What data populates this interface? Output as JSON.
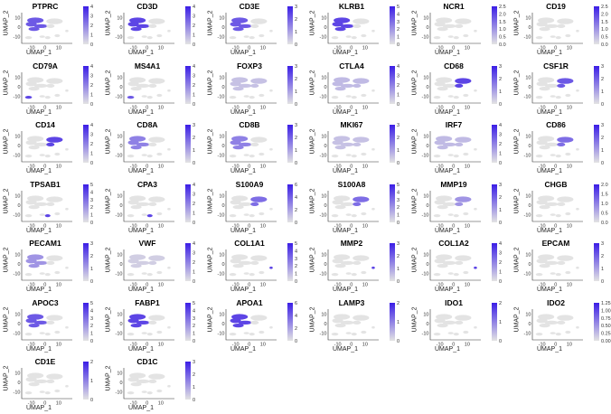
{
  "chart_data": {
    "type": "scatter",
    "description_axes": {
      "xlabel": "UMAP_1",
      "ylabel": "UMAP_2"
    },
    "x_ticks": [
      "-10",
      "0",
      "10"
    ],
    "y_ticks": [
      "10",
      "0",
      "-10"
    ],
    "xlim": [
      -17,
      20
    ],
    "ylim": [
      -17,
      15
    ],
    "color_low": "#e3e3e3",
    "color_high": "#3b1ee6",
    "panels": [
      {
        "gene": "PTPRC",
        "max": 4,
        "ticks": [
          "0",
          "1",
          "2",
          "3",
          "4"
        ],
        "region": "left",
        "level": 0.7
      },
      {
        "gene": "CD3D",
        "max": 4,
        "ticks": [
          "0",
          "1",
          "2",
          "3",
          "4"
        ],
        "region": "left",
        "level": 0.8
      },
      {
        "gene": "CD3E",
        "max": 3,
        "ticks": [
          "0",
          "1",
          "2",
          "3"
        ],
        "region": "left",
        "level": 0.7
      },
      {
        "gene": "KLRB1",
        "max": 5,
        "ticks": [
          "0",
          "1",
          "2",
          "3",
          "4",
          "5"
        ],
        "region": "left",
        "level": 0.8
      },
      {
        "gene": "NCR1",
        "max": 2.5,
        "ticks": [
          "0.0",
          "0.5",
          "1.0",
          "1.5",
          "2.0",
          "2.5"
        ],
        "region": "none",
        "level": 0.1
      },
      {
        "gene": "CD19",
        "max": 2.5,
        "ticks": [
          "0.0",
          "0.5",
          "1.0",
          "1.5",
          "2.0",
          "2.5"
        ],
        "region": "none",
        "level": 0.1
      },
      {
        "gene": "CD79A",
        "max": 4,
        "ticks": [
          "0",
          "1",
          "2",
          "3",
          "4"
        ],
        "region": "spot",
        "level": 0.8
      },
      {
        "gene": "MS4A1",
        "max": 4,
        "ticks": [
          "0",
          "1",
          "2",
          "3",
          "4"
        ],
        "region": "spot",
        "level": 0.7
      },
      {
        "gene": "FOXP3",
        "max": 3,
        "ticks": [
          "0",
          "1",
          "2",
          "3"
        ],
        "region": "sparse",
        "level": 0.5
      },
      {
        "gene": "CTLA4",
        "max": 4,
        "ticks": [
          "0",
          "1",
          "2",
          "3",
          "4"
        ],
        "region": "sparse",
        "level": 0.6
      },
      {
        "gene": "CD68",
        "max": 3,
        "ticks": [
          "0",
          "1",
          "2",
          "3"
        ],
        "region": "myeloid",
        "level": 0.8
      },
      {
        "gene": "CSF1R",
        "max": 3,
        "ticks": [
          "0",
          "1",
          "2",
          "3"
        ],
        "region": "myeloid",
        "level": 0.7
      },
      {
        "gene": "CD14",
        "max": 4,
        "ticks": [
          "0",
          "1",
          "2",
          "3",
          "4"
        ],
        "region": "myeloid",
        "level": 0.8
      },
      {
        "gene": "CD8A",
        "max": 3,
        "ticks": [
          "0",
          "1",
          "2",
          "3"
        ],
        "region": "left",
        "level": 0.5
      },
      {
        "gene": "CD8B",
        "max": 3,
        "ticks": [
          "0",
          "1",
          "2",
          "3"
        ],
        "region": "left",
        "level": 0.5
      },
      {
        "gene": "MKI67",
        "max": 3,
        "ticks": [
          "0",
          "1",
          "2",
          "3"
        ],
        "region": "sparse",
        "level": 0.5
      },
      {
        "gene": "IRF7",
        "max": 4,
        "ticks": [
          "0",
          "1",
          "2",
          "3",
          "4"
        ],
        "region": "sparse",
        "level": 0.6
      },
      {
        "gene": "CD86",
        "max": 3,
        "ticks": [
          "0",
          "1",
          "2",
          "3"
        ],
        "region": "myeloid",
        "level": 0.6
      },
      {
        "gene": "TPSAB1",
        "max": 5,
        "ticks": [
          "0",
          "1",
          "2",
          "3",
          "4",
          "5"
        ],
        "region": "spot2",
        "level": 0.8
      },
      {
        "gene": "CPA3",
        "max": 4,
        "ticks": [
          "0",
          "1",
          "2",
          "3",
          "4"
        ],
        "region": "spot2",
        "level": 0.8
      },
      {
        "gene": "S100A9",
        "max": 6,
        "ticks": [
          "0",
          "2",
          "4",
          "6"
        ],
        "region": "myeloid",
        "level": 0.6
      },
      {
        "gene": "S100A8",
        "max": 5,
        "ticks": [
          "0",
          "1",
          "2",
          "3",
          "4",
          "5"
        ],
        "region": "myeloid",
        "level": 0.6
      },
      {
        "gene": "MMP19",
        "max": 3,
        "ticks": [
          "0",
          "1",
          "2",
          "3"
        ],
        "region": "myeloid",
        "level": 0.4
      },
      {
        "gene": "CHGB",
        "max": 2.0,
        "ticks": [
          "0.0",
          "0.5",
          "1.0",
          "1.5",
          "2.0"
        ],
        "region": "none",
        "level": 0.1
      },
      {
        "gene": "PECAM1",
        "max": 3,
        "ticks": [
          "0",
          "1",
          "2",
          "3"
        ],
        "region": "left",
        "level": 0.4
      },
      {
        "gene": "VWF",
        "max": 4,
        "ticks": [
          "0",
          "1",
          "2",
          "3",
          "4"
        ],
        "region": "sparse",
        "level": 0.3
      },
      {
        "gene": "COL1A1",
        "max": 5,
        "ticks": [
          "0",
          "1",
          "2",
          "3",
          "4",
          "5"
        ],
        "region": "right",
        "level": 0.8
      },
      {
        "gene": "MMP2",
        "max": 3,
        "ticks": [
          "0",
          "1",
          "2",
          "3"
        ],
        "region": "right",
        "level": 0.8
      },
      {
        "gene": "COL1A2",
        "max": 4,
        "ticks": [
          "0",
          "1",
          "2",
          "3",
          "4"
        ],
        "region": "right",
        "level": 0.8
      },
      {
        "gene": "EPCAM",
        "max": 3,
        "ticks": [
          "0",
          "1",
          "2",
          "3"
        ],
        "region": "none",
        "level": 0.1
      },
      {
        "gene": "APOC3",
        "max": 5,
        "ticks": [
          "0",
          "1",
          "2",
          "3",
          "4",
          "5"
        ],
        "region": "left",
        "level": 0.7
      },
      {
        "gene": "FABP1",
        "max": 5,
        "ticks": [
          "0",
          "1",
          "2",
          "3",
          "4",
          "5"
        ],
        "region": "left",
        "level": 0.8
      },
      {
        "gene": "APOA1",
        "max": 6,
        "ticks": [
          "0",
          "2",
          "4",
          "6"
        ],
        "region": "left",
        "level": 0.8
      },
      {
        "gene": "LAMP3",
        "max": 2,
        "ticks": [
          "0",
          "1",
          "2"
        ],
        "region": "none",
        "level": 0.1
      },
      {
        "gene": "IDO1",
        "max": 2,
        "ticks": [
          "0",
          "1",
          "2"
        ],
        "region": "none",
        "level": 0.1
      },
      {
        "gene": "IDO2",
        "max": 1.25,
        "ticks": [
          "0.00",
          "0.25",
          "0.50",
          "0.75",
          "1.00",
          "1.25"
        ],
        "region": "none",
        "level": 0.05
      },
      {
        "gene": "CD1E",
        "max": 2,
        "ticks": [
          "0",
          "1",
          "2"
        ],
        "region": "none",
        "level": 0.1
      },
      {
        "gene": "CD1C",
        "max": 3,
        "ticks": [
          "0",
          "1",
          "2",
          "3"
        ],
        "region": "none",
        "level": 0.1
      }
    ]
  }
}
